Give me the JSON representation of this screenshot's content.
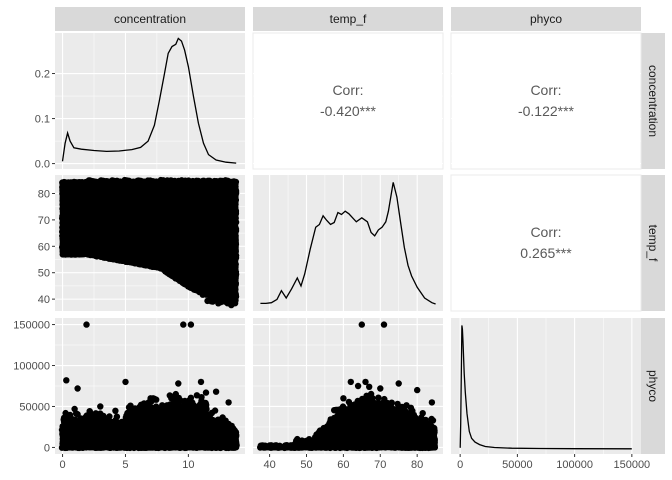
{
  "chart_data": {
    "type": "scatterplot-matrix",
    "variables": [
      "concentration",
      "temp_f",
      "phyco"
    ],
    "panel_background": "#ebebeb",
    "strip_background": "#d9d9d9",
    "grid_color": "#ffffff",
    "line_color": "#000000",
    "point_color": "#000000",
    "axes": {
      "concentration": {
        "range": [
          -0.6,
          14.5
        ],
        "ticks": [
          0,
          5,
          10
        ]
      },
      "temp_f": {
        "range": [
          35.5,
          87
        ],
        "ticks": [
          40,
          50,
          60,
          70,
          80
        ]
      },
      "phyco": {
        "range": [
          -8000,
          158000
        ],
        "ticks": [
          0,
          50000,
          100000,
          150000
        ]
      }
    },
    "density_y_axis": {
      "range": [
        -0.012,
        0.29
      ],
      "ticks": [
        "0.0",
        "0.1",
        "0.2"
      ]
    },
    "correlations": [
      {
        "row": "concentration",
        "col": "temp_f",
        "label": "Corr:",
        "value": "-0.420***"
      },
      {
        "row": "concentration",
        "col": "phyco",
        "label": "Corr:",
        "value": "-0.122***"
      },
      {
        "row": "temp_f",
        "col": "phyco",
        "label": "Corr:",
        "value": "0.265***"
      }
    ],
    "densities": {
      "concentration": [
        [
          0,
          0.005
        ],
        [
          0.2,
          0.045
        ],
        [
          0.4,
          0.068
        ],
        [
          0.6,
          0.05
        ],
        [
          0.9,
          0.035
        ],
        [
          1.5,
          0.032
        ],
        [
          2.5,
          0.029
        ],
        [
          3.5,
          0.027
        ],
        [
          4.5,
          0.028
        ],
        [
          5.5,
          0.031
        ],
        [
          6.2,
          0.036
        ],
        [
          6.8,
          0.05
        ],
        [
          7.3,
          0.085
        ],
        [
          7.7,
          0.14
        ],
        [
          8.1,
          0.2
        ],
        [
          8.4,
          0.245
        ],
        [
          8.7,
          0.26
        ],
        [
          9.0,
          0.265
        ],
        [
          9.2,
          0.278
        ],
        [
          9.45,
          0.272
        ],
        [
          9.7,
          0.252
        ],
        [
          10.0,
          0.215
        ],
        [
          10.4,
          0.15
        ],
        [
          10.8,
          0.09
        ],
        [
          11.2,
          0.045
        ],
        [
          11.6,
          0.02
        ],
        [
          12.2,
          0.008
        ],
        [
          13.0,
          0.003
        ],
        [
          13.8,
          0.001
        ]
      ],
      "temp_f": [
        [
          37.5,
          0.004
        ],
        [
          39,
          0.004
        ],
        [
          40.5,
          0.005
        ],
        [
          42,
          0.01
        ],
        [
          43.2,
          0.023
        ],
        [
          44.5,
          0.012
        ],
        [
          46,
          0.026
        ],
        [
          47.5,
          0.042
        ],
        [
          48.5,
          0.03
        ],
        [
          49.5,
          0.048
        ],
        [
          51,
          0.085
        ],
        [
          52.5,
          0.118
        ],
        [
          53.5,
          0.122
        ],
        [
          54.5,
          0.135
        ],
        [
          55.5,
          0.128
        ],
        [
          56.5,
          0.122
        ],
        [
          57.5,
          0.125
        ],
        [
          58.5,
          0.14
        ],
        [
          59.5,
          0.137
        ],
        [
          60.5,
          0.142
        ],
        [
          61.5,
          0.138
        ],
        [
          62.5,
          0.132
        ],
        [
          63.5,
          0.126
        ],
        [
          65,
          0.132
        ],
        [
          66.5,
          0.126
        ],
        [
          67.5,
          0.11
        ],
        [
          68.5,
          0.105
        ],
        [
          69.5,
          0.114
        ],
        [
          70.5,
          0.118
        ],
        [
          71.5,
          0.126
        ],
        [
          72.2,
          0.142
        ],
        [
          73.5,
          0.185
        ],
        [
          74.5,
          0.163
        ],
        [
          75.5,
          0.125
        ],
        [
          76.5,
          0.088
        ],
        [
          77.5,
          0.061
        ],
        [
          78.5,
          0.045
        ],
        [
          80,
          0.028
        ],
        [
          82,
          0.012
        ],
        [
          84,
          0.005
        ],
        [
          85,
          0.003
        ]
      ],
      "phyco": [
        [
          0,
          0.01
        ],
        [
          500,
          0.2
        ],
        [
          1000,
          0.6
        ],
        [
          1500,
          0.98
        ],
        [
          2000,
          0.95
        ],
        [
          2500,
          0.85
        ],
        [
          3500,
          0.6
        ],
        [
          4500,
          0.45
        ],
        [
          6000,
          0.28
        ],
        [
          8000,
          0.14
        ],
        [
          10000,
          0.085
        ],
        [
          13000,
          0.055
        ],
        [
          17000,
          0.035
        ],
        [
          22000,
          0.02
        ],
        [
          30000,
          0.012
        ],
        [
          45000,
          0.007
        ],
        [
          70000,
          0.004
        ],
        [
          100000,
          0.003
        ],
        [
          150000,
          0.002
        ]
      ]
    },
    "scatter_outliers": {
      "phyco_vs_concentration": [
        [
          1.9,
          150000
        ],
        [
          9.6,
          150000
        ],
        [
          10.2,
          150000
        ],
        [
          0.3,
          82000
        ],
        [
          1.2,
          72000
        ],
        [
          5.0,
          80000
        ],
        [
          9.2,
          78000
        ],
        [
          11.0,
          80000
        ],
        [
          12.2,
          68000
        ],
        [
          13.2,
          55000
        ],
        [
          3.0,
          50000
        ],
        [
          7.0,
          60000
        ]
      ],
      "phyco_vs_temp_f": [
        [
          65,
          150000
        ],
        [
          71,
          150000
        ],
        [
          62,
          80000
        ],
        [
          64,
          75000
        ],
        [
          66,
          80000
        ],
        [
          67,
          74000
        ],
        [
          70,
          72000
        ],
        [
          75,
          78000
        ],
        [
          60,
          60000
        ],
        [
          80,
          70000
        ],
        [
          84,
          55000
        ]
      ]
    }
  }
}
